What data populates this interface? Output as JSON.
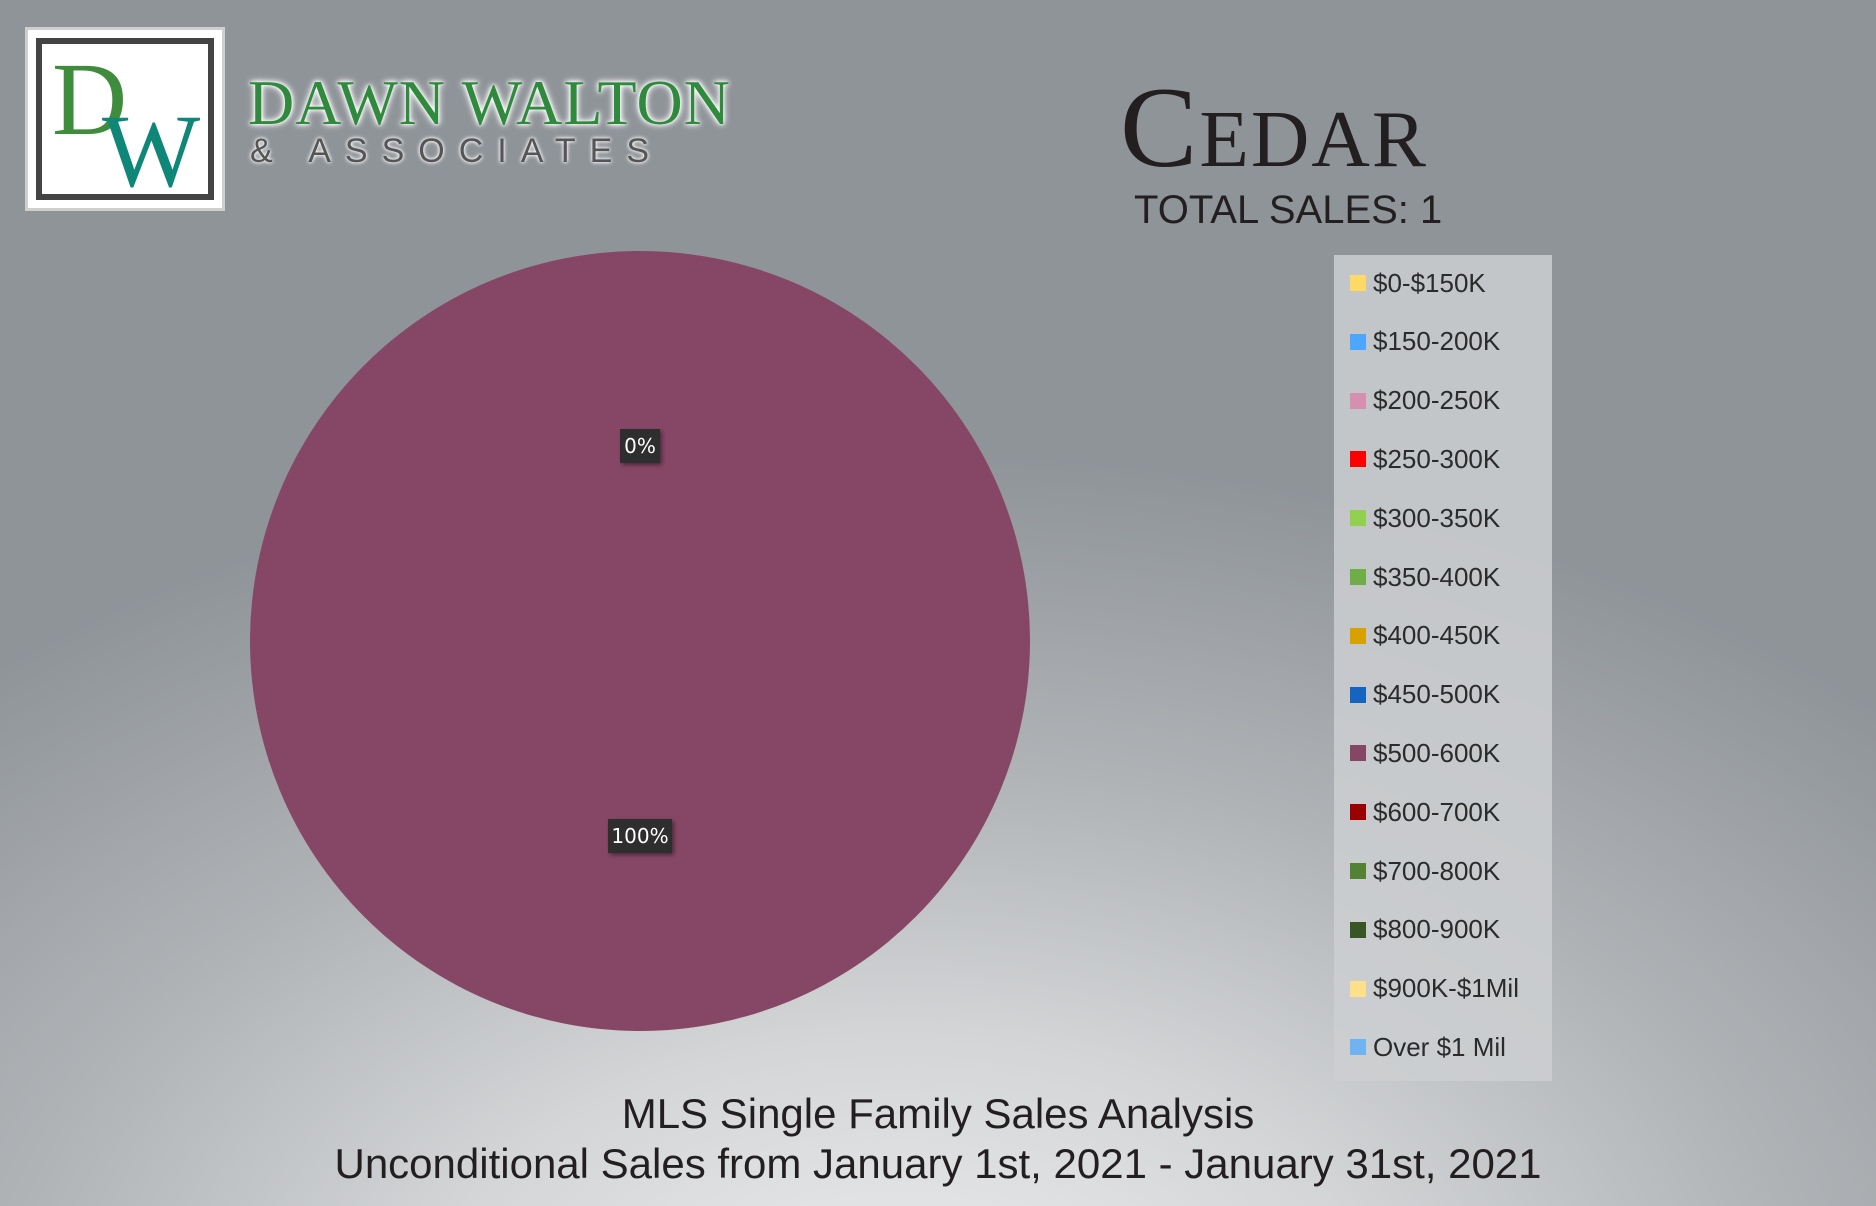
{
  "logo": {
    "monogram_d": "D",
    "monogram_w": "W",
    "name": "DAWN WALTON",
    "sub": "& ASSOCIATES"
  },
  "header": {
    "community": "Cedar",
    "total_sales": "TOTAL SALES: 1"
  },
  "footer": {
    "line1": "MLS Single Family Sales Analysis",
    "line2": "Unconditional Sales from January 1st, 2021 - January 31st, 2021"
  },
  "chart_data": {
    "type": "pie",
    "categories": [
      "$0-$150K",
      "$150-200K",
      "$200-250K",
      "$250-300K",
      "$300-350K",
      "$350-400K",
      "$400-450K",
      "$450-500K",
      "$500-600K",
      "$600-700K",
      "$700-800K",
      "$800-900K",
      "$900K-$1Mil",
      "Over $1 Mil"
    ],
    "values": [
      0,
      0,
      0,
      0,
      0,
      0,
      0,
      0,
      100,
      0,
      0,
      0,
      0,
      0
    ],
    "colors": [
      "#ffd966",
      "#4da6ff",
      "#d68fb0",
      "#ff0000",
      "#92d050",
      "#70ad47",
      "#d9a100",
      "#1565c0",
      "#864766",
      "#9b0000",
      "#548235",
      "#375623",
      "#ffe08a",
      "#6fb3f2"
    ],
    "data_labels": [
      {
        "text": "0%",
        "slice": "$0-$150K"
      },
      {
        "text": "100%",
        "slice": "$500-600K"
      }
    ],
    "legend_position": "right"
  }
}
